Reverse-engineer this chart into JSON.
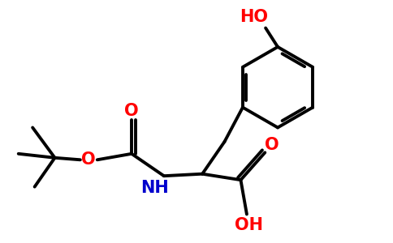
{
  "bg_color": "#ffffff",
  "bond_color": "#000000",
  "bond_width": 2.8,
  "o_color": "#ff0000",
  "n_color": "#0000cd",
  "figsize": [
    4.84,
    3.0
  ],
  "dpi": 100,
  "xlim": [
    0,
    9.68
  ],
  "ylim": [
    0,
    6.0
  ],
  "fs": 13
}
